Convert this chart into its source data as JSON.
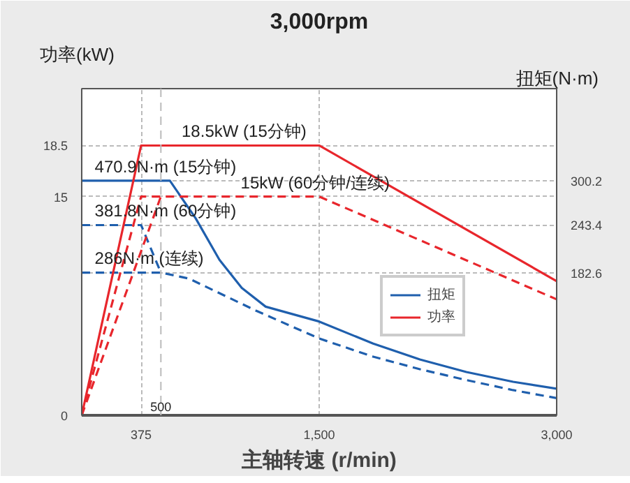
{
  "chart_data": {
    "type": "line",
    "title": "3,000rpm",
    "xlabel": "主轴转速 (r/min)",
    "ylabel": "功率(kW)",
    "y2label": "扭矩(N·m)",
    "xlim": [
      0,
      3000
    ],
    "ylim": [
      0,
      22.4
    ],
    "y2lim": [
      0,
      418
    ],
    "xticks": [
      {
        "value": 375,
        "label": "375"
      },
      {
        "value": 1500,
        "label": "1,500"
      },
      {
        "value": 3000,
        "label": "3,000"
      }
    ],
    "yticks": [
      0,
      15,
      18.5
    ],
    "y2ticks": [
      182.6,
      243.4,
      300.2
    ],
    "grid": true,
    "legend": "right",
    "series": [
      {
        "name": "扭矩",
        "color": "#1f5fad",
        "axis": "y2",
        "line_style": "solid",
        "x": [
          0,
          557,
          720,
          870,
          1011,
          1162,
          1500,
          1841,
          2136,
          2430,
          2725,
          3000
        ],
        "values": [
          300.2,
          300.2,
          252,
          199,
          163,
          139,
          120,
          91.7,
          71.5,
          55.4,
          42.9,
          34
        ]
      },
      {
        "color": "#1f5fad",
        "axis": "y2",
        "line_style": "dashed",
        "x": [
          0,
          375,
          500
        ],
        "values": [
          243.4,
          243.4,
          182.6
        ]
      },
      {
        "color": "#1f5fad",
        "axis": "y2",
        "line_style": "dashed",
        "x": [
          0,
          500,
          677,
          1100,
          1500,
          1841,
          2136,
          2427,
          2725,
          3000
        ],
        "values": [
          182.6,
          182.6,
          175,
          134,
          98.3,
          75,
          59,
          45.2,
          32.2,
          22
        ]
      },
      {
        "name": "功率",
        "color": "#e8262c",
        "line_style": "solid",
        "x": [
          0,
          375,
          1500,
          3000
        ],
        "values": [
          0,
          18.5,
          18.5,
          9.2
        ]
      },
      {
        "color": "#e8262c",
        "line_style": "dashed",
        "x": [
          0,
          375,
          1500,
          3000
        ],
        "values": [
          0,
          15,
          15,
          7.95
        ]
      },
      {
        "color": "#e8262c",
        "line_style": "dashed",
        "x": [
          0,
          500
        ],
        "values": [
          0,
          15
        ]
      }
    ],
    "ref_lines": [
      {
        "axis": "x",
        "value": 500,
        "label": "500",
        "color": "#bbbbbb",
        "line_style": "dashed"
      }
    ],
    "annotations": [
      {
        "text": "18.5kW (15分钟)",
        "x": 631,
        "y": 18.5
      },
      {
        "text": "470.9N·m (15分钟)",
        "x": 82,
        "y": 16.1
      },
      {
        "text": "381.8N·m (60分钟)",
        "x": 82,
        "y": 13.06
      },
      {
        "text": "286N·m (连续)",
        "x": 82,
        "y": 9.8
      },
      {
        "text": "15kW (60分钟/连续)",
        "x": 1004,
        "y": 15
      }
    ]
  }
}
